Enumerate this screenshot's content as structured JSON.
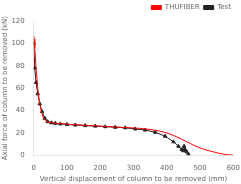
{
  "chart_data": {
    "type": "line",
    "xlabel": "Vertical displacement of column to be removed (mm)",
    "ylabel": "Axial force of column to be removed (kN)",
    "xlim": [
      0,
      600
    ],
    "ylim": [
      0,
      120
    ],
    "xticks": [
      0,
      100,
      200,
      300,
      400,
      500,
      600
    ],
    "yticks": [
      0,
      20,
      40,
      60,
      80,
      100,
      120
    ],
    "grid": false,
    "legend": "upper right",
    "series": [
      {
        "name": "THUFIBER",
        "color": "#ff0000",
        "marker": "none",
        "line_style": "solid",
        "x": [
          0,
          1,
          3,
          5,
          7,
          10,
          13,
          17,
          22,
          28,
          35,
          45,
          55,
          70,
          90,
          110,
          140,
          170,
          200,
          230,
          260,
          290,
          320,
          350,
          380,
          410,
          440,
          460,
          480,
          500,
          520,
          540,
          560,
          580,
          600
        ],
        "values": [
          107,
          104,
          96,
          88,
          78,
          67,
          57,
          48,
          40,
          34,
          31,
          29.5,
          29,
          28.5,
          28,
          27.5,
          27,
          26.5,
          26,
          25.5,
          25,
          24.5,
          24,
          23,
          21.5,
          19,
          15,
          12,
          9,
          6.5,
          4.5,
          3,
          1.5,
          0.5,
          0
        ]
      },
      {
        "name": "Test",
        "color": "#222222",
        "marker": "triangle",
        "line_style": "solid",
        "x": [
          0,
          3,
          7,
          12,
          18,
          25,
          33,
          42,
          53,
          65,
          80,
          100,
          125,
          155,
          185,
          215,
          245,
          275,
          305,
          335,
          365,
          395,
          420,
          435,
          445,
          450,
          452,
          455,
          460,
          465
        ],
        "values": [
          100,
          78,
          65,
          55,
          46,
          39,
          33,
          30,
          29,
          28.5,
          28,
          27.5,
          27,
          26.5,
          26,
          25.5,
          25,
          24.5,
          23.5,
          22.5,
          20.5,
          17,
          12,
          8,
          5,
          4,
          8,
          5,
          3,
          1
        ]
      }
    ]
  }
}
